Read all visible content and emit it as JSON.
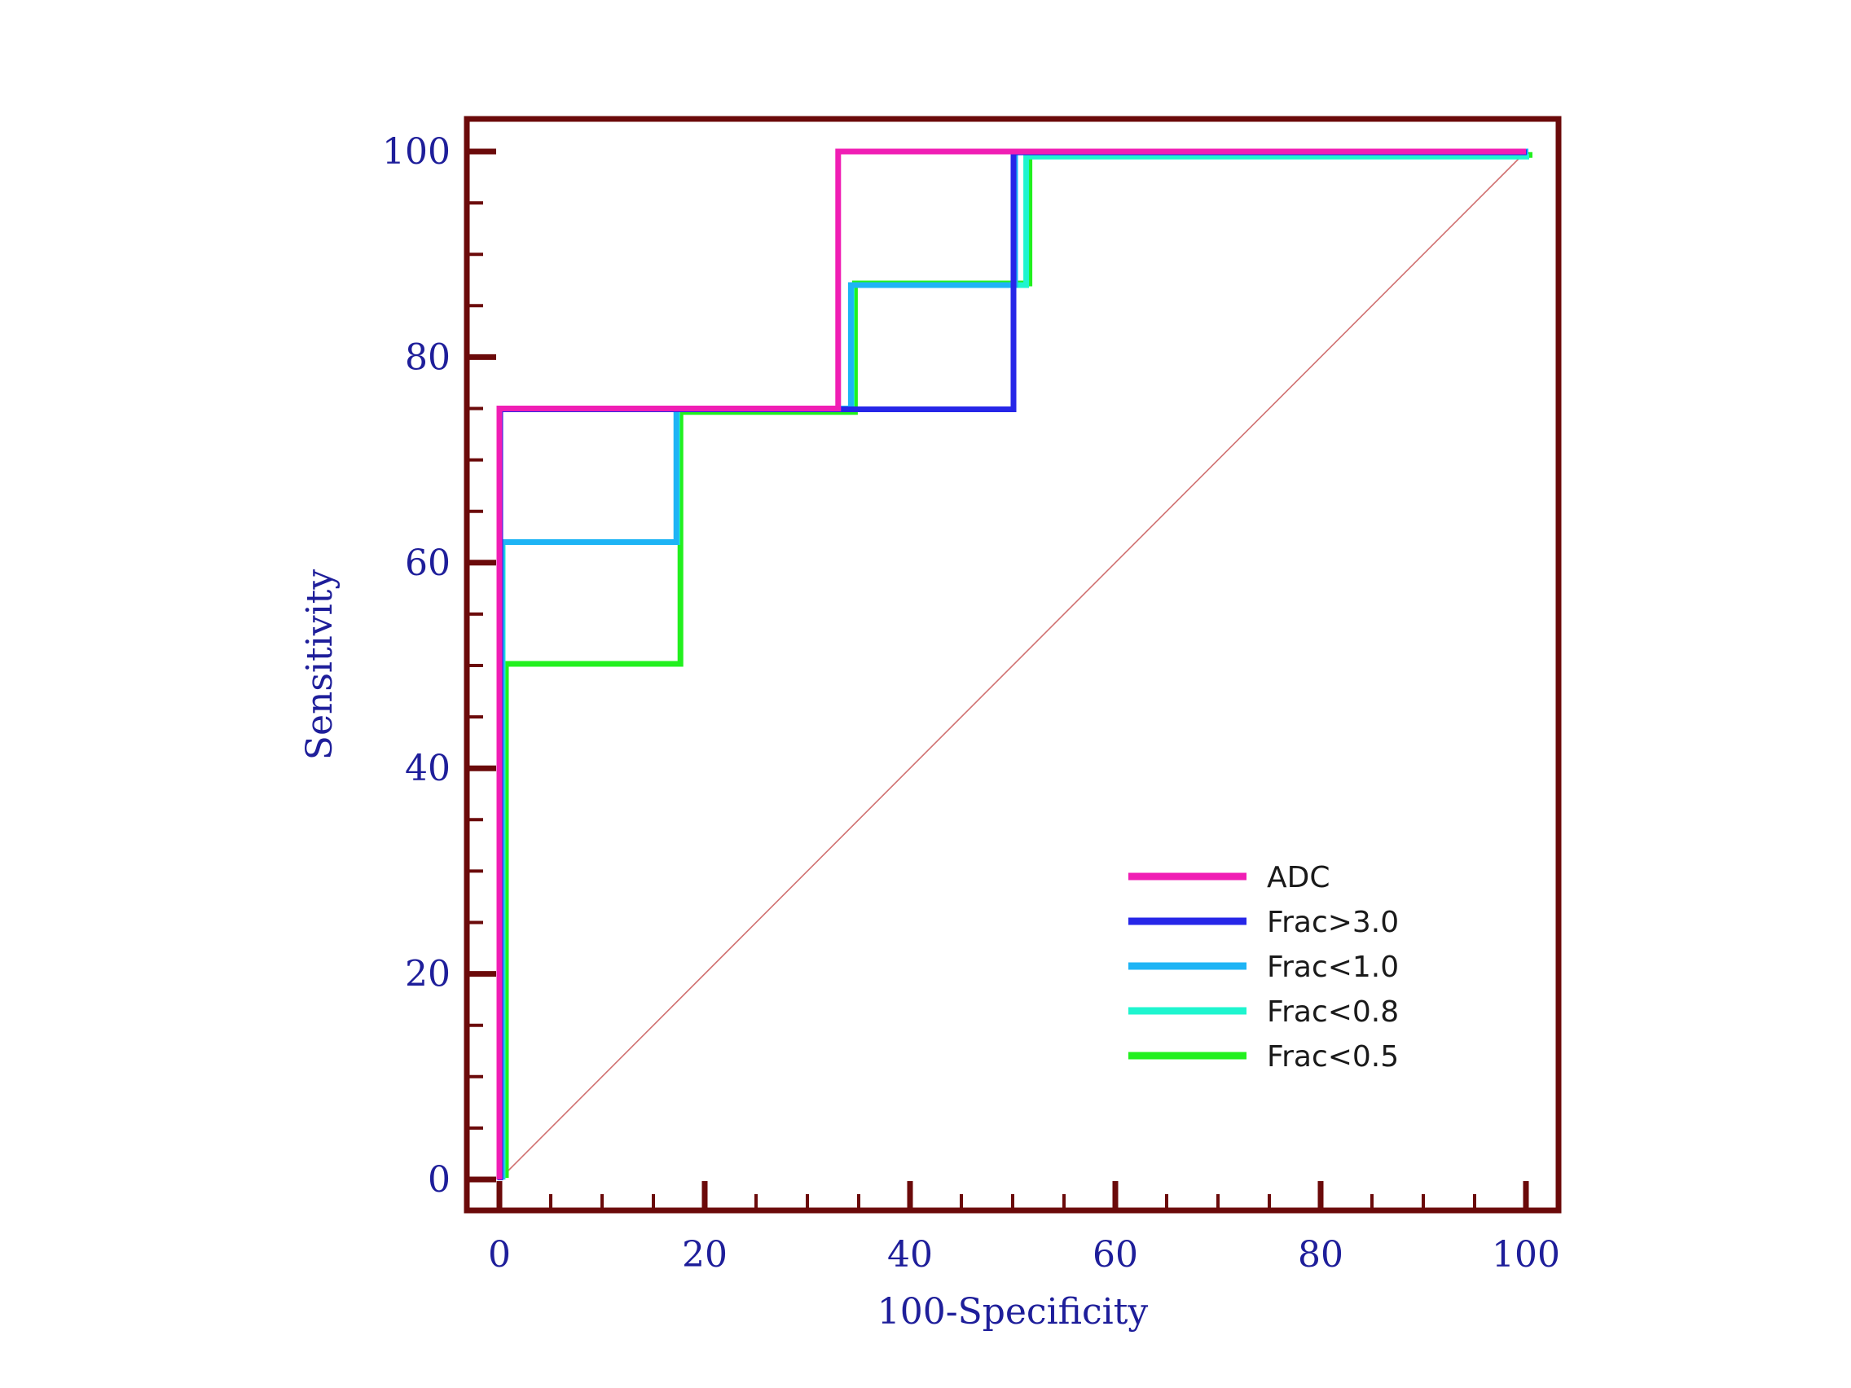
{
  "chart_data": {
    "type": "line",
    "subtype": "roc-step",
    "title": "",
    "xlabel": "100-Specificity",
    "ylabel": "Sensitivity",
    "xlim": [
      0,
      100
    ],
    "ylim": [
      0,
      100
    ],
    "xticks": [
      0,
      20,
      40,
      60,
      80,
      100
    ],
    "yticks": [
      0,
      20,
      40,
      60,
      80,
      100
    ],
    "xtick_labels": [
      "0",
      "20",
      "40",
      "60",
      "80",
      "100"
    ],
    "ytick_labels": [
      "0",
      "20",
      "40",
      "60",
      "80",
      "100"
    ],
    "minor_tick_step": 5,
    "grid": false,
    "legend_position": "bottom-right",
    "frame_color": "#6b0a0a",
    "text_color": "#1e1e9a",
    "reference_line": {
      "name": "chance",
      "x": [
        0,
        100
      ],
      "y": [
        0,
        100
      ],
      "color": "#d07070"
    },
    "series": [
      {
        "name": "Frac<0.5",
        "color": "#22f01e",
        "x": [
          0,
          0,
          0,
          17,
          17,
          34,
          34,
          51,
          51,
          100
        ],
        "y": [
          0,
          0,
          50,
          50,
          74.5,
          74.5,
          87,
          87,
          99.5,
          99.5
        ]
      },
      {
        "name": "Frac<0.8",
        "color": "#1ef5cf",
        "x": [
          0,
          0,
          0,
          17,
          17,
          34,
          34,
          51,
          51,
          100
        ],
        "y": [
          0,
          0,
          62,
          62,
          75,
          75,
          87,
          87,
          99.5,
          99.5
        ]
      },
      {
        "name": "Frac<1.0",
        "color": "#1eb4f5",
        "x": [
          0,
          0,
          0,
          17,
          17,
          34,
          34,
          50,
          50,
          100
        ],
        "y": [
          0,
          0,
          62,
          62,
          75,
          75,
          87,
          87,
          100,
          100
        ]
      },
      {
        "name": "Frac>3.0",
        "color": "#2626e8",
        "x": [
          0,
          0,
          50,
          50,
          100
        ],
        "y": [
          0,
          75,
          75,
          100,
          100
        ]
      },
      {
        "name": "ADC",
        "color": "#f01eb4",
        "x": [
          0,
          0,
          33,
          33,
          100
        ],
        "y": [
          0,
          75,
          75,
          100,
          100
        ]
      }
    ],
    "legend": [
      {
        "name": "ADC",
        "color": "#f01eb4"
      },
      {
        "name": "Frac>3.0",
        "color": "#2626e8"
      },
      {
        "name": "Frac<1.0",
        "color": "#1eb4f5"
      },
      {
        "name": "Frac<0.8",
        "color": "#1ef5cf"
      },
      {
        "name": "Frac<0.5",
        "color": "#22f01e"
      }
    ]
  }
}
